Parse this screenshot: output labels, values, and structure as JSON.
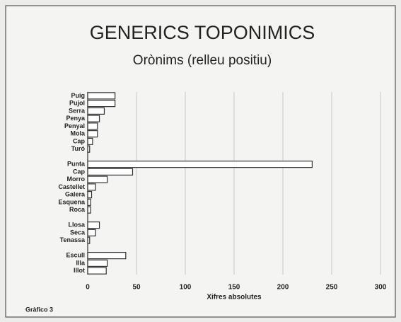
{
  "chart_data": {
    "type": "bar",
    "orientation": "horizontal",
    "title": "GENERICS TOPONIMICS",
    "subtitle": "Orònims (relleu positiu)",
    "x_label": "Xifres absolutes",
    "footer": "Gràfico 3",
    "categories": [
      "Puig",
      "Pujol",
      "Serra",
      "Penya",
      "Penyal",
      "Mola",
      "Cap",
      "Turó",
      null,
      "Punta",
      "Cap",
      "Morro",
      "Castellet",
      "Galera",
      "Esquena",
      "Roca",
      null,
      "Llosa",
      "Seca",
      "Tenassa",
      null,
      "Escull",
      "Illa",
      "Illot"
    ],
    "values": [
      28,
      28,
      17,
      12,
      10,
      10,
      5,
      2,
      null,
      230,
      46,
      20,
      8,
      4,
      3,
      3,
      null,
      12,
      8,
      2,
      null,
      39,
      20,
      19
    ],
    "color": "#ffffff",
    "xlim": [
      0,
      300
    ],
    "xticks": [
      0,
      50,
      100,
      150,
      200,
      250,
      300
    ],
    "grid": true
  }
}
